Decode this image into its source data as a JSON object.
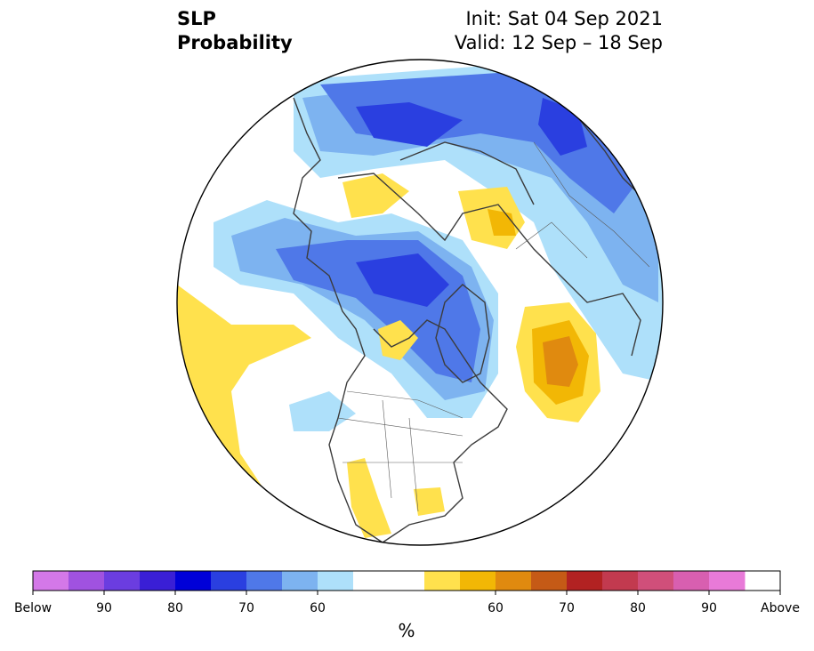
{
  "title": {
    "left_line1": "SLP",
    "left_line2": "Probability",
    "right_line1": "Init: Sat 04 Sep 2021",
    "right_line2": "Valid: 12 Sep – 18 Sep"
  },
  "colorbar": {
    "unit_label": "%",
    "colors": [
      "#d478e8",
      "#a052e0",
      "#6b3de0",
      "#3a1fd6",
      "#0000d8",
      "#2a3fe0",
      "#4f78e8",
      "#7db3f0",
      "#aee0fa",
      "#ffffff",
      "#ffe14d",
      "#f2b705",
      "#e08a0f",
      "#c55a16",
      "#b22222",
      "#c23a4f",
      "#d04f7a",
      "#d85fb0",
      "#e87ad8"
    ],
    "tick_labels": [
      "Below",
      "90",
      "80",
      "70",
      "60",
      "60",
      "70",
      "80",
      "90",
      "Above"
    ]
  },
  "legend_colors": {
    "outline": "#3c3c3c",
    "map_edge": "#000000"
  }
}
